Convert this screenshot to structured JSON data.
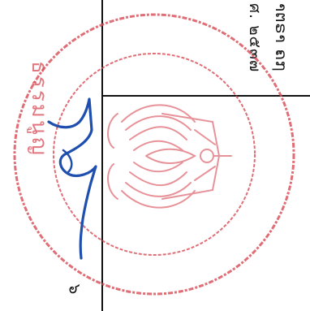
{
  "document": {
    "text_line_1": "າຕຣາ ຄ໗",
    "text_line_2": "ศ. ๒๕๓๗",
    "page_number": "๖"
  },
  "seal": {
    "outer_text": "ธรรมนูญ",
    "color": "#d84a55",
    "emblem": "garuda-emblem"
  },
  "signature": {
    "color": "#1f4fae"
  }
}
